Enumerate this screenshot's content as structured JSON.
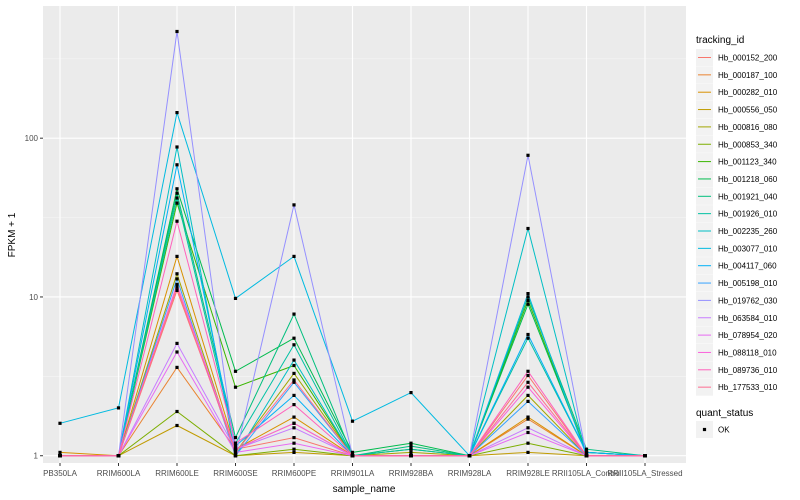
{
  "chart_data": {
    "type": "line",
    "xlabel": "sample_name",
    "ylabel": "FPKM + 1",
    "y_scale": "log10",
    "ylim": [
      0.9,
      680
    ],
    "y_ticks": [
      1,
      10,
      100
    ],
    "y_tick_labels": [
      "1",
      "10",
      "100"
    ],
    "grid": true,
    "panel_background": "#ebebeb",
    "legend_position": "right",
    "categories": [
      "PB350LA",
      "RRIM600LA",
      "RRIM600LE",
      "RRIM600SE",
      "RRIM600PE",
      "RRIM901LA",
      "RRIM928BA",
      "RRIM928LA",
      "RRIM928LE",
      "RRII105LA_Control",
      "RRII105LA_Stressed"
    ],
    "colour_legend_title": "tracking_id",
    "shape_legend_title": "quant_status",
    "shape_legend_items": [
      {
        "label": "OK",
        "shape": "square"
      }
    ],
    "series": [
      {
        "name": "Hb_000152_200",
        "color": "#F8766D",
        "values": [
          1.0,
          1.0,
          11.0,
          1.1,
          1.3,
          1.0,
          1.0,
          1.0,
          3.2,
          1.0,
          1.0
        ]
      },
      {
        "name": "Hb_000187_100",
        "color": "#EA8331",
        "values": [
          1.0,
          1.0,
          3.6,
          1.1,
          1.6,
          1.0,
          1.0,
          1.0,
          1.7,
          1.0,
          1.0
        ]
      },
      {
        "name": "Hb_000282_010",
        "color": "#D89000",
        "values": [
          1.05,
          1.0,
          18.0,
          1.1,
          1.75,
          1.0,
          1.0,
          1.0,
          1.75,
          1.0,
          1.0
        ]
      },
      {
        "name": "Hb_000556_050",
        "color": "#C09B00",
        "values": [
          1.0,
          1.0,
          1.55,
          1.0,
          1.05,
          1.0,
          1.0,
          1.0,
          1.05,
          1.0,
          1.0
        ]
      },
      {
        "name": "Hb_000816_080",
        "color": "#A3A500",
        "values": [
          1.0,
          1.0,
          14.0,
          1.05,
          3.3,
          1.0,
          1.05,
          1.0,
          2.4,
          1.0,
          1.0
        ]
      },
      {
        "name": "Hb_000853_340",
        "color": "#7CAE00",
        "values": [
          1.0,
          1.0,
          1.9,
          1.0,
          1.1,
          1.0,
          1.0,
          1.0,
          1.2,
          1.0,
          1.0
        ]
      },
      {
        "name": "Hb_001123_340",
        "color": "#39B600",
        "values": [
          1.0,
          1.0,
          39.0,
          2.7,
          3.7,
          1.0,
          1.1,
          1.0,
          9.5,
          1.05,
          1.0
        ]
      },
      {
        "name": "Hb_001218_060",
        "color": "#00BB4E",
        "values": [
          1.0,
          1.0,
          48.0,
          3.4,
          5.5,
          1.05,
          1.2,
          1.0,
          9.0,
          1.05,
          1.0
        ]
      },
      {
        "name": "Hb_001921_040",
        "color": "#00BF7D",
        "values": [
          1.0,
          1.0,
          45.0,
          1.3,
          7.8,
          1.0,
          1.15,
          1.0,
          10.0,
          1.1,
          1.0
        ]
      },
      {
        "name": "Hb_001926_010",
        "color": "#00C1A3",
        "values": [
          1.0,
          1.0,
          42.0,
          1.2,
          5.0,
          1.0,
          1.1,
          1.0,
          5.5,
          1.05,
          1.0
        ]
      },
      {
        "name": "Hb_002235_260",
        "color": "#00BFC4",
        "values": [
          1.0,
          1.0,
          88.0,
          1.0,
          4.0,
          1.0,
          1.0,
          1.0,
          27.0,
          1.0,
          1.0
        ]
      },
      {
        "name": "Hb_003077_010",
        "color": "#00BAE0",
        "values": [
          1.6,
          2.0,
          145.0,
          9.8,
          18.0,
          1.65,
          2.5,
          1.0,
          10.5,
          1.0,
          1.0
        ]
      },
      {
        "name": "Hb_004117_060",
        "color": "#00B0F6",
        "values": [
          1.0,
          1.0,
          68.0,
          1.15,
          2.4,
          1.0,
          1.0,
          1.0,
          5.8,
          1.05,
          1.0
        ]
      },
      {
        "name": "Hb_005198_010",
        "color": "#35A2FF",
        "values": [
          1.0,
          1.0,
          13.0,
          1.0,
          2.9,
          1.0,
          1.0,
          1.0,
          2.2,
          1.0,
          1.0
        ]
      },
      {
        "name": "Hb_019762_030",
        "color": "#9590FF",
        "values": [
          1.0,
          1.0,
          470.0,
          1.0,
          38.0,
          1.0,
          1.0,
          1.0,
          78.0,
          1.0,
          1.0
        ]
      },
      {
        "name": "Hb_063584_010",
        "color": "#C77CFF",
        "values": [
          1.0,
          1.0,
          5.1,
          1.1,
          1.5,
          1.0,
          1.0,
          1.0,
          1.5,
          1.0,
          1.0
        ]
      },
      {
        "name": "Hb_078954_020",
        "color": "#E76BF3",
        "values": [
          1.0,
          1.0,
          4.5,
          1.05,
          1.2,
          1.0,
          1.0,
          1.0,
          1.4,
          1.0,
          1.0
        ]
      },
      {
        "name": "Hb_088118_010",
        "color": "#FA62DB",
        "values": [
          1.0,
          1.0,
          12.0,
          1.1,
          1.6,
          1.0,
          1.0,
          1.0,
          2.7,
          1.0,
          1.0
        ]
      },
      {
        "name": "Hb_089736_010",
        "color": "#FF62BC",
        "values": [
          1.0,
          1.0,
          30.0,
          1.2,
          2.1,
          1.0,
          1.0,
          1.0,
          3.4,
          1.0,
          1.0
        ]
      },
      {
        "name": "Hb_177533_010",
        "color": "#FF6C91",
        "values": [
          1.0,
          1.0,
          11.5,
          1.05,
          3.0,
          1.0,
          1.0,
          1.0,
          2.9,
          1.0,
          1.0
        ]
      }
    ]
  }
}
